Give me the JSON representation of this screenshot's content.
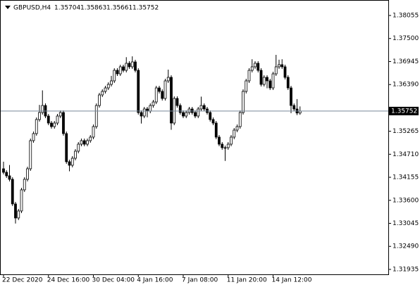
{
  "chart_data": {
    "type": "candlestick",
    "categories": [
      "22 Dec 2020",
      null,
      null,
      null,
      null,
      null,
      null,
      null,
      null,
      null,
      null,
      null,
      null,
      null,
      null,
      "24 Dec 16:00",
      null,
      null,
      null,
      null,
      null,
      null,
      null,
      null,
      null,
      null,
      null,
      null,
      null,
      null,
      "30 Dec 04:00",
      null,
      null,
      null,
      null,
      null,
      null,
      null,
      null,
      null,
      null,
      null,
      null,
      null,
      null,
      "4 Jan 16:00",
      null,
      null,
      null,
      null,
      null,
      null,
      null,
      null,
      null,
      null,
      null,
      null,
      null,
      null,
      "7 Jan 08:00",
      null,
      null,
      null,
      null,
      null,
      null,
      null,
      null,
      null,
      null,
      null,
      null,
      null,
      null,
      "11 Jan 20:00",
      null,
      null,
      null,
      null,
      null,
      null,
      null,
      null,
      null,
      null,
      null,
      null,
      null,
      null,
      "14 Jan 12:00",
      null,
      null,
      null,
      null,
      null,
      null,
      null,
      null,
      null
    ],
    "series": [
      {
        "name": "GBPUSD,H4",
        "up_color": "#ffffff",
        "down_color": "#000000",
        "outline_color": "#000000",
        "open": [
          1.3436,
          1.34275,
          1.3419,
          1.34106,
          1.33513,
          1.33174,
          1.33343,
          1.33852,
          1.34106,
          1.3436,
          1.35038,
          1.35208,
          1.35547,
          1.35716,
          1.35885,
          1.35631,
          1.35462,
          1.35377,
          1.35462,
          1.35631,
          1.35716,
          1.35208,
          1.3453,
          1.34445,
          1.34614,
          1.34784,
          1.34953,
          1.35038,
          1.34953,
          1.35038,
          1.35123,
          1.35377,
          1.35885,
          1.3614,
          1.36225,
          1.36309,
          1.36394,
          1.36479,
          1.36733,
          1.36648,
          1.36818,
          1.36733,
          1.36903,
          1.36818,
          1.36936,
          1.36733,
          1.35716,
          1.35631,
          1.35801,
          1.3575,
          1.35885,
          1.3597,
          1.36309,
          1.36225,
          1.36055,
          1.36479,
          1.36564,
          1.35462,
          1.36055,
          1.35885,
          1.35716,
          1.35631,
          1.35716,
          1.35801,
          1.35716,
          1.35631,
          1.35801,
          1.35885,
          1.35801,
          1.35716,
          1.35547,
          1.35462,
          1.35123,
          1.34953,
          1.34869,
          1.34869,
          1.34953,
          1.35123,
          1.35292,
          1.35377,
          1.35716,
          1.36225,
          1.36479,
          1.36733,
          1.36818,
          1.36903,
          1.36733,
          1.36394,
          1.36564,
          1.36479,
          1.36309,
          1.36648,
          1.36818,
          1.36869,
          1.36818,
          1.36564,
          1.36309,
          1.35885,
          1.35801,
          1.35704
        ],
        "high": [
          1.3453,
          1.34325,
          1.3445,
          1.34156,
          1.33563,
          1.33393,
          1.33902,
          1.34156,
          1.3441,
          1.35088,
          1.35258,
          1.35597,
          1.359,
          1.3625,
          1.35935,
          1.35681,
          1.35512,
          1.35512,
          1.35681,
          1.35766,
          1.35766,
          1.35258,
          1.3458,
          1.34664,
          1.34834,
          1.35003,
          1.35088,
          1.35088,
          1.35088,
          1.35173,
          1.35427,
          1.35935,
          1.3619,
          1.36275,
          1.36359,
          1.36444,
          1.366,
          1.36783,
          1.36783,
          1.36868,
          1.36868,
          1.3705,
          1.36953,
          1.3707,
          1.36986,
          1.36783,
          1.35766,
          1.35851,
          1.35851,
          1.35935,
          1.3602,
          1.36359,
          1.36359,
          1.36275,
          1.36529,
          1.3675,
          1.36614,
          1.36105,
          1.36105,
          1.35935,
          1.35766,
          1.35766,
          1.35851,
          1.35851,
          1.35766,
          1.35851,
          1.361,
          1.35935,
          1.35851,
          1.35766,
          1.35597,
          1.35512,
          1.35173,
          1.35003,
          1.34919,
          1.35003,
          1.35173,
          1.35342,
          1.35427,
          1.35766,
          1.36275,
          1.36529,
          1.36783,
          1.37,
          1.36953,
          1.36953,
          1.36783,
          1.36614,
          1.36614,
          1.36529,
          1.36698,
          1.37106,
          1.3699,
          1.37,
          1.36868,
          1.36614,
          1.36359,
          1.35935,
          1.3604,
          1.35863
        ],
        "low": [
          1.34225,
          1.3414,
          1.34056,
          1.33463,
          1.3304,
          1.33124,
          1.33293,
          1.33802,
          1.34056,
          1.3431,
          1.34988,
          1.35158,
          1.35497,
          1.35666,
          1.35581,
          1.35412,
          1.35327,
          1.35327,
          1.35412,
          1.35581,
          1.35158,
          1.3448,
          1.343,
          1.34395,
          1.34564,
          1.34734,
          1.34903,
          1.34903,
          1.34903,
          1.34988,
          1.35073,
          1.35327,
          1.35835,
          1.3609,
          1.36175,
          1.36259,
          1.36344,
          1.36429,
          1.36598,
          1.36598,
          1.36683,
          1.36683,
          1.36768,
          1.36768,
          1.36683,
          1.35666,
          1.3545,
          1.35581,
          1.356,
          1.357,
          1.35835,
          1.3592,
          1.36175,
          1.36005,
          1.36005,
          1.36429,
          1.353,
          1.35412,
          1.35835,
          1.35666,
          1.35581,
          1.35581,
          1.35666,
          1.35666,
          1.35581,
          1.35581,
          1.35751,
          1.35751,
          1.35666,
          1.35497,
          1.35412,
          1.35073,
          1.34903,
          1.34819,
          1.3455,
          1.34819,
          1.34903,
          1.35073,
          1.35242,
          1.35327,
          1.35666,
          1.36175,
          1.36429,
          1.36683,
          1.36768,
          1.36683,
          1.36344,
          1.36344,
          1.363,
          1.36259,
          1.36259,
          1.36598,
          1.36768,
          1.36768,
          1.36514,
          1.36259,
          1.357,
          1.35751,
          1.35654,
          1.35661
        ],
        "close": [
          1.34275,
          1.3419,
          1.34106,
          1.33513,
          1.33174,
          1.33343,
          1.33852,
          1.34106,
          1.3436,
          1.35038,
          1.35208,
          1.35547,
          1.35716,
          1.35885,
          1.35631,
          1.35462,
          1.35377,
          1.35462,
          1.35631,
          1.35716,
          1.35208,
          1.3453,
          1.34445,
          1.34614,
          1.34784,
          1.34953,
          1.35038,
          1.34953,
          1.35038,
          1.35123,
          1.35377,
          1.35885,
          1.3614,
          1.36225,
          1.36309,
          1.36394,
          1.36479,
          1.36733,
          1.36648,
          1.36818,
          1.36733,
          1.36903,
          1.36818,
          1.36936,
          1.36733,
          1.35716,
          1.35631,
          1.35801,
          1.3575,
          1.35885,
          1.3597,
          1.36309,
          1.36225,
          1.36055,
          1.36479,
          1.36564,
          1.35462,
          1.36055,
          1.35885,
          1.35716,
          1.35631,
          1.35716,
          1.35801,
          1.35716,
          1.35631,
          1.35801,
          1.35885,
          1.35801,
          1.35716,
          1.35547,
          1.35462,
          1.35123,
          1.34953,
          1.34869,
          1.34869,
          1.34953,
          1.35123,
          1.35292,
          1.35377,
          1.35716,
          1.36225,
          1.36479,
          1.36733,
          1.36818,
          1.36903,
          1.36733,
          1.36394,
          1.36564,
          1.36479,
          1.36309,
          1.36648,
          1.36818,
          1.36869,
          1.36818,
          1.36564,
          1.36309,
          1.35885,
          1.35801,
          1.35704,
          1.35752
        ]
      }
    ],
    "ylim": [
      1.31816,
      1.38428
    ],
    "yticks": [
      1.38055,
      {
        "value": 1.375,
        "label": "1.37500"
      },
      1.36945,
      {
        "value": 1.3639,
        "label": "1.36390"
      },
      1.35265,
      {
        "value": 1.3471,
        "label": "1.34710"
      },
      1.34155,
      {
        "value": 1.336,
        "label": "1.33600"
      },
      1.33045,
      {
        "value": 1.3249,
        "label": "1.32490"
      },
      1.31935
    ],
    "price_line_color": "#778899"
  }
}
